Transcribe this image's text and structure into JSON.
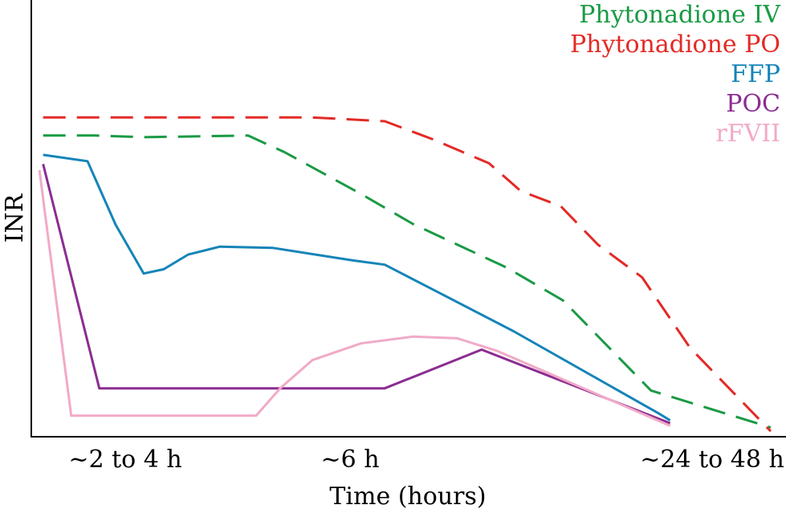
{
  "chart_data": {
    "type": "line",
    "title": "",
    "xlabel": "Time (hours)",
    "ylabel": "INR",
    "x_ticks": [
      "~2 to 4 h",
      "~6 h",
      "~24 to 48 h"
    ],
    "xlim": [
      0,
      100
    ],
    "ylim": [
      0,
      100
    ],
    "grid": false,
    "legend_position": "top-right",
    "series": [
      {
        "name": "Phytonadione IV",
        "color": "#1a9a45",
        "dash": "dashed",
        "points": [
          [
            1.6,
            71.6
          ],
          [
            8.7,
            71.6
          ],
          [
            15.2,
            71.2
          ],
          [
            29.3,
            71.6
          ],
          [
            34.3,
            67.6
          ],
          [
            44.6,
            57.7
          ],
          [
            51.6,
            50.6
          ],
          [
            64.3,
            40.2
          ],
          [
            71.9,
            32.4
          ],
          [
            83.8,
            11.0
          ],
          [
            100,
            2.2
          ]
        ]
      },
      {
        "name": "Phytonadione PO",
        "color": "#e32a26",
        "dash": "dashed",
        "points": [
          [
            1.6,
            75.9
          ],
          [
            20.6,
            75.9
          ],
          [
            38.0,
            75.9
          ],
          [
            47.8,
            75.0
          ],
          [
            54.3,
            70.7
          ],
          [
            61.9,
            65.0
          ],
          [
            66.2,
            58.4
          ],
          [
            71.6,
            54.8
          ],
          [
            76.6,
            45.7
          ],
          [
            82.6,
            37.9
          ],
          [
            89.1,
            21.1
          ],
          [
            100,
            1.3
          ]
        ]
      },
      {
        "name": "FFP",
        "color": "#1584b8",
        "dash": "solid",
        "points": [
          [
            1.6,
            67.0
          ],
          [
            7.6,
            65.5
          ],
          [
            11.4,
            50.4
          ],
          [
            15.2,
            38.8
          ],
          [
            17.9,
            39.8
          ],
          [
            21.2,
            43.3
          ],
          [
            25.5,
            45.2
          ],
          [
            32.6,
            44.9
          ],
          [
            43.5,
            41.9
          ],
          [
            47.8,
            40.9
          ],
          [
            55.4,
            34.0
          ],
          [
            65.2,
            25.1
          ],
          [
            84.8,
            5.6
          ],
          [
            86.4,
            3.9
          ]
        ]
      },
      {
        "name": "POC",
        "color": "#8b2d91",
        "dash": "solid",
        "points": [
          [
            1.6,
            64.8
          ],
          [
            9.2,
            11.5
          ],
          [
            47.8,
            11.5
          ],
          [
            60.9,
            20.7
          ],
          [
            86.4,
            3.2
          ]
        ]
      },
      {
        "name": "rFVII",
        "color": "#f1aac8",
        "dash": "solid",
        "points": [
          [
            1.1,
            63.4
          ],
          [
            5.4,
            5.0
          ],
          [
            30.4,
            5.0
          ],
          [
            33.7,
            11.6
          ],
          [
            38.0,
            18.2
          ],
          [
            44.6,
            22.2
          ],
          [
            51.6,
            23.8
          ],
          [
            57.6,
            23.4
          ],
          [
            63.0,
            20.4
          ],
          [
            86.4,
            2.6
          ]
        ]
      }
    ]
  }
}
